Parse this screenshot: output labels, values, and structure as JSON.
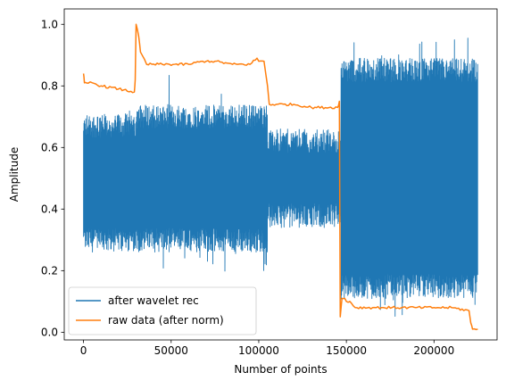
{
  "chart_data": {
    "type": "line",
    "title": "",
    "xlabel": "Number of points",
    "ylabel": "Amplitude",
    "xlim": [
      -11000,
      236000
    ],
    "ylim": [
      -0.025,
      1.05
    ],
    "xticks": [
      {
        "value": 0,
        "label": "0"
      },
      {
        "value": 50000,
        "label": "50000"
      },
      {
        "value": 100000,
        "label": "100000"
      },
      {
        "value": 150000,
        "label": "150000"
      },
      {
        "value": 200000,
        "label": "200000"
      }
    ],
    "yticks": [
      {
        "value": 0.0,
        "label": "0.0"
      },
      {
        "value": 0.2,
        "label": "0.2"
      },
      {
        "value": 0.4,
        "label": "0.4"
      },
      {
        "value": 0.6,
        "label": "0.6"
      },
      {
        "value": 0.8,
        "label": "0.8"
      },
      {
        "value": 1.0,
        "label": "1.0"
      }
    ],
    "grid": false,
    "legend_position": "lower-left",
    "series": [
      {
        "name": "after wavelet rec",
        "color": "#1f77b4",
        "style": "dense-oscillation",
        "segments": [
          {
            "x_start": 0,
            "x_end": 30000,
            "center": 0.48,
            "spread_low": 0.3,
            "spread_high": 0.67,
            "peak_high": 0.72,
            "peak_low": 0.29
          },
          {
            "x_start": 30000,
            "x_end": 105000,
            "center": 0.5,
            "spread_low": 0.3,
            "spread_high": 0.7,
            "peak_high": 0.84,
            "peak_low": 0.18
          },
          {
            "x_start": 105000,
            "x_end": 147000,
            "center": 0.5,
            "spread_low": 0.38,
            "spread_high": 0.62,
            "peak_high": 0.65,
            "peak_low": 0.35
          },
          {
            "x_start": 147000,
            "x_end": 225000,
            "center": 0.5,
            "spread_low": 0.15,
            "spread_high": 0.85,
            "peak_high": 0.96,
            "peak_low": 0.05
          }
        ]
      },
      {
        "name": "raw data (after norm)",
        "color": "#ff7f0e",
        "style": "step",
        "x": [
          0,
          500,
          1500,
          5000,
          10000,
          20000,
          29000,
          29500,
          30000,
          31500,
          32500,
          36000,
          45000,
          60000,
          68000,
          70000,
          75000,
          85000,
          95000,
          99000,
          100000,
          103000,
          105000,
          106000,
          110000,
          120000,
          130000,
          145000,
          146000,
          146500,
          147500,
          149000,
          150000,
          152000,
          155000,
          170000,
          200000,
          210000,
          220000,
          221000,
          222000,
          225000
        ],
        "y": [
          0.84,
          0.81,
          0.81,
          0.81,
          0.8,
          0.79,
          0.78,
          0.82,
          1.0,
          0.96,
          0.91,
          0.87,
          0.87,
          0.87,
          0.88,
          0.88,
          0.88,
          0.87,
          0.87,
          0.89,
          0.88,
          0.88,
          0.8,
          0.74,
          0.74,
          0.74,
          0.73,
          0.73,
          0.75,
          0.05,
          0.11,
          0.11,
          0.1,
          0.1,
          0.08,
          0.08,
          0.08,
          0.08,
          0.07,
          0.03,
          0.01,
          0.01
        ]
      }
    ]
  }
}
